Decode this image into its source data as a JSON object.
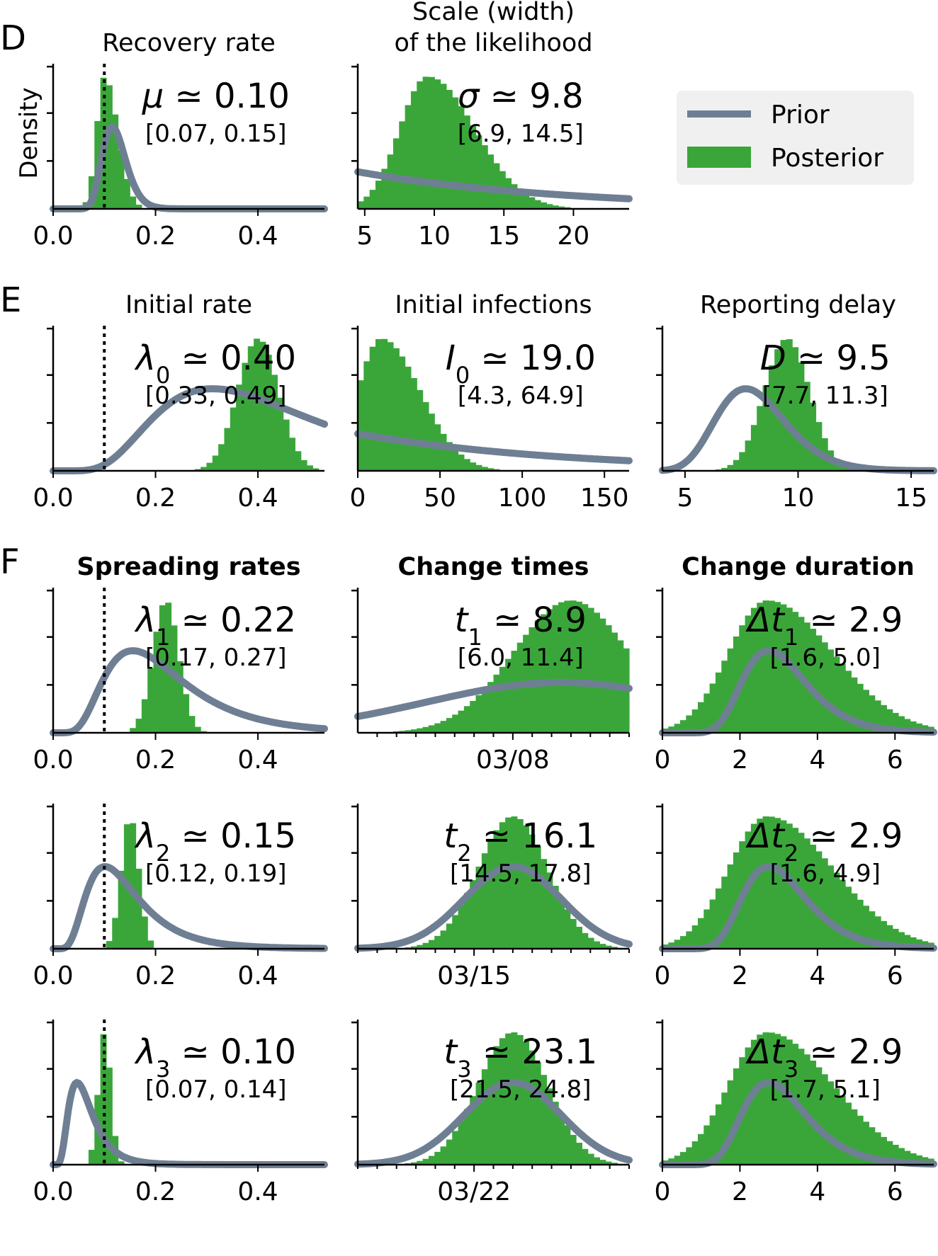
{
  "figure": {
    "panel_letters": [
      "D",
      "E",
      "F"
    ],
    "density_label": "Density",
    "legend": {
      "prior": "Prior",
      "posterior": "Posterior"
    },
    "colors": {
      "prior": "#6f7f93",
      "posterior": "#3aa63a",
      "posterior_light": "#a8d9a8",
      "reference_line": "#000000",
      "legend_bg": "#f0f0f0"
    }
  },
  "chart_data": [
    {
      "id": "recovery",
      "type": "histogram",
      "title": "Recovery rate",
      "annotation": {
        "symbol": "μ",
        "value": "0.10",
        "interval": "[0.07, 0.15]"
      },
      "xlim": [
        0,
        0.53
      ],
      "xticks": [
        0,
        0.2,
        0.4
      ],
      "xtick_labels": [
        "0.0",
        "0.2",
        "0.4"
      ],
      "posterior": {
        "mode": 0.1,
        "spread": 0.015,
        "skew": "right"
      },
      "prior": {
        "kind": "lognormal",
        "median": 0.12,
        "sigma": 0.2
      },
      "reference_line": 0.1
    },
    {
      "id": "scale",
      "type": "histogram",
      "title": "Scale (width)\nof the likelihood",
      "annotation": {
        "symbol": "σ",
        "value": "9.8",
        "interval": "[6.9, 14.5]"
      },
      "xlim": [
        4.5,
        24
      ],
      "xticks": [
        5,
        10,
        15,
        20
      ],
      "xtick_labels": [
        "5",
        "10",
        "15",
        "20"
      ],
      "posterior": {
        "mode": 9.5,
        "spread": 2.0,
        "skew": "right"
      },
      "prior": {
        "kind": "decaying",
        "start": 4.5,
        "end": 24
      },
      "reference_line": null
    },
    {
      "id": "initial_rate",
      "type": "histogram",
      "title": "Initial rate",
      "annotation": {
        "symbol": "λ",
        "sub": "0",
        "value": "0.40",
        "interval": "[0.33, 0.49]"
      },
      "xlim": [
        0,
        0.53
      ],
      "xticks": [
        0,
        0.2,
        0.4
      ],
      "xtick_labels": [
        "0.0",
        "0.2",
        "0.4"
      ],
      "posterior": {
        "mode": 0.4,
        "spread": 0.04,
        "skew": "none"
      },
      "prior": {
        "kind": "lognormal",
        "median": 0.4,
        "sigma": 0.5
      },
      "reference_line": 0.1
    },
    {
      "id": "initial_infections",
      "type": "histogram",
      "title": "Initial infections",
      "annotation": {
        "symbol": "I",
        "sub": "0",
        "value": "19.0",
        "interval": "[4.3, 64.9]"
      },
      "xlim": [
        0,
        165
      ],
      "xticks": [
        0,
        50,
        100,
        150
      ],
      "xtick_labels": [
        "0",
        "50",
        "100",
        "150"
      ],
      "posterior": {
        "mode": 14,
        "spread": 14,
        "skew": "right"
      },
      "prior": {
        "kind": "decaying",
        "start": 0,
        "end": 165
      },
      "reference_line": null
    },
    {
      "id": "reporting_delay",
      "type": "histogram",
      "title": "Reporting delay",
      "annotation": {
        "symbol": "D",
        "value": "9.5",
        "interval": "[7.7, 11.3]"
      },
      "xlim": [
        4,
        16
      ],
      "xticks": [
        5,
        10,
        15
      ],
      "xtick_labels": [
        "5",
        "10",
        "15"
      ],
      "posterior": {
        "mode": 9.5,
        "spread": 1.0,
        "skew": "none"
      },
      "prior": {
        "kind": "lognormal",
        "median": 8,
        "sigma": 0.2
      },
      "reference_line": null
    },
    {
      "id": "lambda1",
      "type": "histogram",
      "title": "Spreading rates",
      "title_bold": true,
      "annotation": {
        "symbol": "λ",
        "sub": "1",
        "value": "0.22",
        "interval": "[0.17, 0.27]"
      },
      "xlim": [
        0,
        0.53
      ],
      "xticks": [
        0,
        0.2,
        0.4
      ],
      "xtick_labels": [
        "0.0",
        "0.2",
        "0.4"
      ],
      "posterior": {
        "mode": 0.22,
        "spread": 0.025,
        "skew": "none"
      },
      "prior": {
        "kind": "lognormal",
        "median": 0.2,
        "sigma": 0.5
      },
      "reference_line": 0.1
    },
    {
      "id": "t1",
      "type": "histogram",
      "title": "Change times",
      "title_bold": true,
      "annotation": {
        "symbol": "t",
        "sub": "1",
        "value": "8.9",
        "interval": "[6.0, 11.4]"
      },
      "xlim": [
        -1,
        13
      ],
      "xticks": [
        0,
        1,
        2,
        3,
        4,
        5,
        6,
        7,
        8,
        9,
        10,
        11,
        12,
        13
      ],
      "date_tick": 7,
      "date_label": "03/08",
      "posterior": {
        "mode": 10,
        "spread": 3.0,
        "skew": "none"
      },
      "prior": {
        "kind": "normal",
        "mean": 9.5,
        "sd": 7
      },
      "reference_line": null
    },
    {
      "id": "dt1",
      "type": "histogram",
      "title": "Change duration",
      "title_bold": true,
      "annotation": {
        "symbol": "Δt",
        "sub": "1",
        "value": "2.9",
        "interval": "[1.6, 5.0]"
      },
      "xlim": [
        0,
        7
      ],
      "xticks": [
        0,
        2,
        4,
        6
      ],
      "xtick_labels": [
        "0",
        "2",
        "4",
        "6"
      ],
      "posterior": {
        "mode": 2.7,
        "spread": 1.0,
        "skew": "right"
      },
      "prior": {
        "kind": "lognormal",
        "median": 3,
        "sigma": 0.3
      },
      "reference_line": null
    },
    {
      "id": "lambda2",
      "type": "histogram",
      "title": "",
      "annotation": {
        "symbol": "λ",
        "sub": "2",
        "value": "0.15",
        "interval": "[0.12, 0.19]"
      },
      "xlim": [
        0,
        0.53
      ],
      "xticks": [
        0,
        0.2,
        0.4
      ],
      "xtick_labels": [
        "0.0",
        "0.2",
        "0.4"
      ],
      "posterior": {
        "mode": 0.15,
        "spread": 0.017,
        "skew": "none"
      },
      "prior": {
        "kind": "lognormal",
        "median": 0.13,
        "sigma": 0.5
      },
      "reference_line": 0.1
    },
    {
      "id": "t2",
      "type": "histogram",
      "title": "",
      "annotation": {
        "symbol": "t",
        "sub": "2",
        "value": "16.1",
        "interval": "[14.5, 17.8]"
      },
      "xlim": [
        8,
        22
      ],
      "xticks": [
        8,
        9,
        10,
        11,
        12,
        13,
        14,
        15,
        16,
        17,
        18,
        19,
        20,
        21,
        22
      ],
      "date_tick": 14,
      "date_label": "03/15",
      "posterior": {
        "mode": 16,
        "spread": 1.8,
        "skew": "none"
      },
      "prior": {
        "kind": "normal",
        "mean": 16,
        "sd": 2.5
      },
      "reference_line": null
    },
    {
      "id": "dt2",
      "type": "histogram",
      "title": "",
      "annotation": {
        "symbol": "Δt",
        "sub": "2",
        "value": "2.9",
        "interval": "[1.6, 4.9]"
      },
      "xlim": [
        0,
        7
      ],
      "xticks": [
        0,
        2,
        4,
        6
      ],
      "xtick_labels": [
        "0",
        "2",
        "4",
        "6"
      ],
      "posterior": {
        "mode": 2.7,
        "spread": 1.0,
        "skew": "right"
      },
      "prior": {
        "kind": "lognormal",
        "median": 3,
        "sigma": 0.3
      },
      "reference_line": null
    },
    {
      "id": "lambda3",
      "type": "histogram",
      "title": "",
      "annotation": {
        "symbol": "λ",
        "sub": "3",
        "value": "0.10",
        "interval": "[0.07, 0.14]"
      },
      "xlim": [
        0,
        0.53
      ],
      "xticks": [
        0,
        0.2,
        0.4
      ],
      "xtick_labels": [
        "0.0",
        "0.2",
        "0.4"
      ],
      "posterior": {
        "mode": 0.1,
        "spread": 0.012,
        "skew": "none"
      },
      "prior": {
        "kind": "lognormal",
        "median": 0.06,
        "sigma": 0.5
      },
      "reference_line": 0.1
    },
    {
      "id": "t3",
      "type": "histogram",
      "title": "",
      "annotation": {
        "symbol": "t",
        "sub": "3",
        "value": "23.1",
        "interval": "[21.5, 24.8]"
      },
      "xlim": [
        15,
        29
      ],
      "xticks": [
        15,
        16,
        17,
        18,
        19,
        20,
        21,
        22,
        23,
        24,
        25,
        26,
        27,
        28,
        29
      ],
      "date_tick": 21,
      "date_label": "03/22",
      "posterior": {
        "mode": 23,
        "spread": 1.8,
        "skew": "none"
      },
      "prior": {
        "kind": "normal",
        "mean": 23,
        "sd": 2.5
      },
      "reference_line": null
    },
    {
      "id": "dt3",
      "type": "histogram",
      "title": "",
      "annotation": {
        "symbol": "Δt",
        "sub": "3",
        "value": "2.9",
        "interval": "[1.7, 5.1]"
      },
      "xlim": [
        0,
        7
      ],
      "xticks": [
        0,
        2,
        4,
        6
      ],
      "xtick_labels": [
        "0",
        "2",
        "4",
        "6"
      ],
      "posterior": {
        "mode": 2.7,
        "spread": 1.0,
        "skew": "right"
      },
      "prior": {
        "kind": "lognormal",
        "median": 3,
        "sigma": 0.3
      },
      "reference_line": null
    }
  ]
}
